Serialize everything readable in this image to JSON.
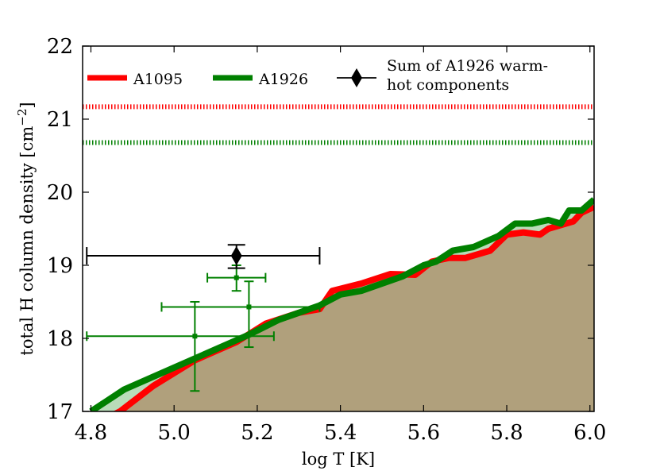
{
  "chart_data": {
    "type": "line",
    "xlabel": "log T [K]",
    "ylabel": "total H column density [cm$^-2$]",
    "ylabel_parts": {
      "main": "total H column density [cm",
      "sup": "−2",
      "close": "]"
    },
    "xlim": [
      4.78,
      6.01
    ],
    "ylim": [
      17,
      22
    ],
    "x_ticks": [
      4.8,
      5.0,
      5.2,
      5.4,
      5.6,
      5.8,
      6.0
    ],
    "x_tick_labels": [
      "4.8",
      "5.0",
      "5.2",
      "5.4",
      "5.6",
      "5.8",
      "6.0"
    ],
    "y_ticks": [
      17,
      18,
      19,
      20,
      21,
      22
    ],
    "y_tick_labels": [
      "17",
      "18",
      "19",
      "20",
      "21",
      "22"
    ],
    "grid": false,
    "legend_position": "top",
    "series": [
      {
        "name": "A1095",
        "color": "#ff0000",
        "fill": "#b0a07c",
        "x": [
          4.8,
          4.87,
          4.95,
          5.05,
          5.15,
          5.22,
          5.3,
          5.35,
          5.38,
          5.45,
          5.52,
          5.58,
          5.62,
          5.66,
          5.7,
          5.76,
          5.8,
          5.84,
          5.88,
          5.9,
          5.93,
          5.96,
          5.98,
          6.01
        ],
        "y": [
          16.8,
          17.0,
          17.35,
          17.7,
          17.95,
          18.2,
          18.35,
          18.4,
          18.65,
          18.75,
          18.88,
          18.87,
          19.05,
          19.1,
          19.1,
          19.2,
          19.42,
          19.45,
          19.42,
          19.5,
          19.55,
          19.6,
          19.72,
          19.8
        ]
      },
      {
        "name": "A1926",
        "color": "#008000",
        "fill": "#b9dcb9",
        "x": [
          4.8,
          4.88,
          5.0,
          5.1,
          5.18,
          5.25,
          5.35,
          5.4,
          5.45,
          5.55,
          5.6,
          5.63,
          5.67,
          5.72,
          5.78,
          5.82,
          5.86,
          5.9,
          5.93,
          5.95,
          5.98,
          6.01
        ],
        "y": [
          17.0,
          17.3,
          17.6,
          17.85,
          18.05,
          18.25,
          18.45,
          18.6,
          18.65,
          18.85,
          19.0,
          19.05,
          19.2,
          19.25,
          19.4,
          19.57,
          19.57,
          19.62,
          19.57,
          19.75,
          19.75,
          19.9
        ]
      }
    ],
    "limit_lines": [
      {
        "y": 21.17,
        "color": "#ff0000",
        "style": "dotted"
      },
      {
        "y": 20.68,
        "color": "#008000",
        "style": "dotted"
      }
    ],
    "errorbar_points": [
      {
        "x": 5.05,
        "y": 18.03,
        "xerr": [
          0.26,
          0.19
        ],
        "yerr": [
          0.75,
          0.47
        ],
        "color": "#008000",
        "marker": "square"
      },
      {
        "x": 5.15,
        "y": 18.83,
        "xerr": [
          0.07,
          0.07
        ],
        "yerr": [
          0.18,
          0.17
        ],
        "color": "#008000",
        "marker": "square"
      },
      {
        "x": 5.18,
        "y": 18.43,
        "xerr": [
          0.21,
          0.17
        ],
        "yerr": [
          0.55,
          0.35
        ],
        "color": "#008000",
        "marker": "square"
      },
      {
        "x": 5.15,
        "y": 19.13,
        "xerr": [
          0.36,
          0.2
        ],
        "yerr": [
          0.17,
          0.15
        ],
        "color": "#000000",
        "marker": "diamond"
      }
    ],
    "legend": [
      {
        "label": "A1095",
        "color": "#ff0000",
        "kind": "line"
      },
      {
        "label": "A1926",
        "color": "#008000",
        "kind": "line"
      },
      {
        "label_lines": [
          "Sum of A1926 warm-",
          "hot components"
        ],
        "color": "#000000",
        "kind": "errorbar-diamond"
      }
    ]
  }
}
